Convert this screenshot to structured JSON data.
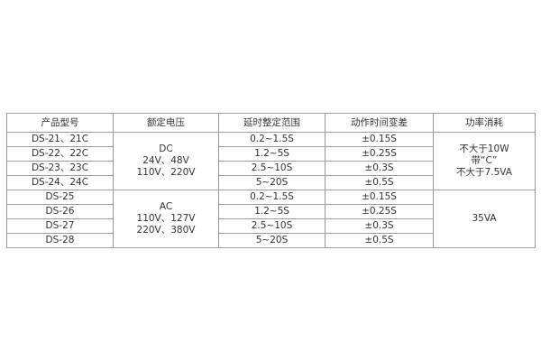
{
  "headers": [
    "产品型号",
    "额定电压",
    "延时整定范围",
    "动作时间变差",
    "功率消耗"
  ],
  "rows": [
    {
      "model": "DS-21、21C",
      "range": "0.2~1.5S",
      "variance": "±0.15S"
    },
    {
      "model": "DS-22、22C",
      "range": "1.2~5S",
      "variance": "±0.25S"
    },
    {
      "model": "DS-23、23C",
      "range": "2.5~10S",
      "variance": "±0.3S"
    },
    {
      "model": "DS-24、24C",
      "range": "5~20S",
      "variance": "±0.5S"
    },
    {
      "model": "DS-25",
      "range": "0.2~1.5S",
      "variance": "±0.15S"
    },
    {
      "model": "DS-26",
      "range": "1.2~5S",
      "variance": "±0.25S"
    },
    {
      "model": "DS-27",
      "range": "2.5~10S",
      "variance": "±0.3S"
    },
    {
      "model": "DS-28",
      "range": "5~20S",
      "variance": "±0.5S"
    }
  ],
  "groups": [
    {
      "voltage": "DC\n24V、48V\n110V、220V",
      "power": "不大于10W\n带“C”\n不大于7.5VA"
    },
    {
      "voltage": "AC\n110V、127V\n220V、380V",
      "power": "35VA"
    }
  ]
}
